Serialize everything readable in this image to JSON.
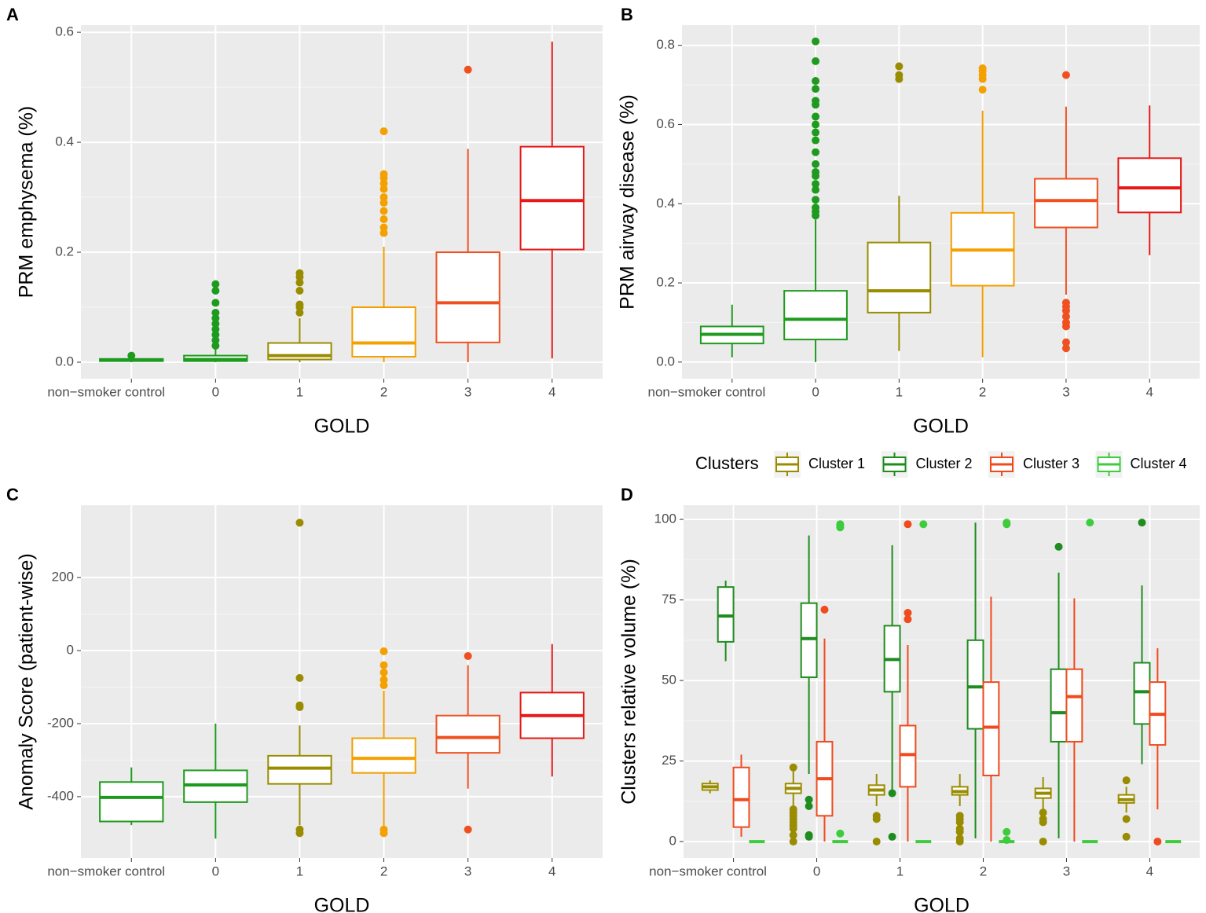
{
  "chart_data": [
    {
      "type": "box",
      "label": "A",
      "xlabel": "GOLD",
      "ylabel": "PRM emphysema (%)",
      "grid": true,
      "categories": [
        "non−smoker control",
        "0",
        "1",
        "2",
        "3",
        "4"
      ],
      "ylim": [
        -0.03,
        0.613
      ],
      "yticks": [
        {
          "value": 0,
          "label": "0.0"
        },
        0.2,
        0.4,
        0.6
      ],
      "series": [
        {
          "colors": [
            "#1e9a1e",
            "#1e9a1e",
            "#9a8c00",
            "#f4a000",
            "#f05020",
            "#e81818"
          ],
          "boxes": [
            {
              "min": 0,
              "q1": 0.002,
              "median": 0.004,
              "q3": 0.006,
              "max": 0.008,
              "outliers": [
                0.012
              ]
            },
            {
              "min": 0,
              "q1": 0.002,
              "median": 0.005,
              "q3": 0.012,
              "max": 0.026,
              "outliers": [
                0.03,
                0.04,
                0.05,
                0.06,
                0.07,
                0.08,
                0.09,
                0.108,
                0.13,
                0.142
              ]
            },
            {
              "min": 0,
              "q1": 0.005,
              "median": 0.012,
              "q3": 0.035,
              "max": 0.08,
              "outliers": [
                0.09,
                0.1,
                0.105,
                0.13,
                0.145,
                0.155,
                0.162
              ]
            },
            {
              "min": 0,
              "q1": 0.01,
              "median": 0.035,
              "q3": 0.1,
              "max": 0.21,
              "outliers": [
                0.235,
                0.245,
                0.26,
                0.275,
                0.29,
                0.3,
                0.315,
                0.325,
                0.335,
                0.342,
                0.42
              ]
            },
            {
              "min": 0,
              "q1": 0.036,
              "median": 0.108,
              "q3": 0.2,
              "max": 0.388,
              "outliers": [
                0.532
              ]
            },
            {
              "min": 0.007,
              "q1": 0.205,
              "median": 0.294,
              "q3": 0.392,
              "max": 0.583,
              "outliers": []
            }
          ]
        }
      ]
    },
    {
      "type": "box",
      "label": "B",
      "xlabel": "GOLD",
      "ylabel": "PRM airway disease (%)",
      "grid": true,
      "categories": [
        "non−smoker control",
        "0",
        "1",
        "2",
        "3",
        "4"
      ],
      "ylim": [
        -0.042,
        0.851
      ],
      "yticks": [
        {
          "value": 0,
          "label": "0.0"
        },
        0.2,
        0.4,
        0.6,
        0.8
      ],
      "series": [
        {
          "colors": [
            "#1e9a1e",
            "#1e9a1e",
            "#9a8c00",
            "#f4a000",
            "#f05020",
            "#e81818"
          ],
          "boxes": [
            {
              "min": 0.012,
              "q1": 0.047,
              "median": 0.07,
              "q3": 0.09,
              "max": 0.145,
              "outliers": []
            },
            {
              "min": 0,
              "q1": 0.057,
              "median": 0.108,
              "q3": 0.18,
              "max": 0.36,
              "outliers": [
                0.37,
                0.38,
                0.39,
                0.41,
                0.435,
                0.45,
                0.47,
                0.48,
                0.5,
                0.53,
                0.56,
                0.58,
                0.6,
                0.62,
                0.65,
                0.66,
                0.69,
                0.71,
                0.76,
                0.81
              ]
            },
            {
              "min": 0.028,
              "q1": 0.125,
              "median": 0.18,
              "q3": 0.302,
              "max": 0.42,
              "outliers": [
                0.715,
                0.725,
                0.747
              ]
            },
            {
              "min": 0.012,
              "q1": 0.193,
              "median": 0.283,
              "q3": 0.377,
              "max": 0.635,
              "outliers": [
                0.688,
                0.715,
                0.725,
                0.735,
                0.742
              ]
            },
            {
              "min": 0.17,
              "q1": 0.34,
              "median": 0.408,
              "q3": 0.463,
              "max": 0.645,
              "outliers": [
                0.035,
                0.05,
                0.09,
                0.1,
                0.115,
                0.13,
                0.14,
                0.15,
                0.725
              ]
            },
            {
              "min": 0.27,
              "q1": 0.378,
              "median": 0.44,
              "q3": 0.515,
              "max": 0.648,
              "outliers": []
            }
          ]
        }
      ]
    },
    {
      "type": "box",
      "label": "C",
      "xlabel": "GOLD",
      "ylabel": "Anomaly Score (patient-wise)",
      "grid": true,
      "categories": [
        "non−smoker control",
        "0",
        "1",
        "2",
        "3",
        "4"
      ],
      "ylim": [
        -568,
        398
      ],
      "yticks": [
        -400,
        -200,
        0,
        200
      ],
      "series": [
        {
          "colors": [
            "#1e9a1e",
            "#1e9a1e",
            "#9a8c00",
            "#f4a000",
            "#f05020",
            "#e81818"
          ],
          "boxes": [
            {
              "min": -478,
              "q1": -468,
              "median": -402,
              "q3": -360,
              "max": -320,
              "outliers": []
            },
            {
              "min": -515,
              "q1": -415,
              "median": -368,
              "q3": -328,
              "max": -200,
              "outliers": []
            },
            {
              "min": -478,
              "q1": -365,
              "median": -322,
              "q3": -288,
              "max": -205,
              "outliers": [
                -500,
                -490,
                -155,
                -150,
                -75,
                350
              ]
            },
            {
              "min": -480,
              "q1": -335,
              "median": -295,
              "q3": -240,
              "max": -110,
              "outliers": [
                -500,
                -490,
                -95,
                -80,
                -60,
                -40,
                -2
              ]
            },
            {
              "min": -378,
              "q1": -280,
              "median": -238,
              "q3": -178,
              "max": -40,
              "outliers": [
                -490,
                -15
              ]
            },
            {
              "min": -345,
              "q1": -240,
              "median": -178,
              "q3": -115,
              "max": 18,
              "outliers": []
            }
          ]
        }
      ]
    },
    {
      "type": "box",
      "label": "D",
      "xlabel": "GOLD",
      "ylabel": "Clusters relative volume (%)",
      "grid": true,
      "legend_title": "Clusters",
      "categories": [
        "non−smoker control",
        "0",
        "1",
        "2",
        "3",
        "4"
      ],
      "ylim": [
        -5.1,
        104.4
      ],
      "yticks": [
        0,
        25,
        50,
        75,
        100
      ],
      "series": [
        {
          "name": "Cluster 1",
          "color": "#9a8c00",
          "boxes": [
            {
              "min": 15,
              "q1": 16,
              "median": 17,
              "q3": 18,
              "max": 19,
              "outliers": []
            },
            {
              "min": 11,
              "q1": 15,
              "median": 16.5,
              "q3": 18,
              "max": 22,
              "outliers": [
                0,
                2,
                4,
                5,
                6,
                7,
                8,
                9,
                10,
                23
              ]
            },
            {
              "min": 11,
              "q1": 14.5,
              "median": 16,
              "q3": 17.5,
              "max": 21,
              "outliers": [
                0,
                7,
                8
              ]
            },
            {
              "min": 11,
              "q1": 14.5,
              "median": 15.5,
              "q3": 17,
              "max": 21,
              "outliers": [
                0,
                1,
                3,
                4,
                6,
                7,
                8
              ]
            },
            {
              "min": 10,
              "q1": 13.5,
              "median": 15,
              "q3": 16.5,
              "max": 20,
              "outliers": [
                0,
                6,
                7,
                9
              ]
            },
            {
              "min": 9,
              "q1": 12,
              "median": 13,
              "q3": 14.5,
              "max": 17,
              "outliers": [
                1.5,
                7,
                19
              ]
            }
          ]
        },
        {
          "name": "Cluster 2",
          "color": "#1e8c1e",
          "boxes": [
            {
              "min": 56,
              "q1": 62,
              "median": 70,
              "q3": 79,
              "max": 81,
              "outliers": []
            },
            {
              "min": 21,
              "q1": 51,
              "median": 63,
              "q3": 74,
              "max": 95,
              "outliers": [
                1.5,
                2,
                11,
                13
              ]
            },
            {
              "min": 16,
              "q1": 46.5,
              "median": 56.5,
              "q3": 67,
              "max": 92,
              "outliers": [
                1.5,
                15
              ]
            },
            {
              "min": 1,
              "q1": 35,
              "median": 48,
              "q3": 62.5,
              "max": 99,
              "outliers": []
            },
            {
              "min": 1,
              "q1": 31,
              "median": 40,
              "q3": 53.5,
              "max": 83.5,
              "outliers": [
                91.5
              ]
            },
            {
              "min": 24,
              "q1": 36.5,
              "median": 46.5,
              "q3": 55.5,
              "max": 79.5,
              "outliers": [
                99
              ]
            }
          ]
        },
        {
          "name": "Cluster 3",
          "color": "#f04a1e",
          "boxes": [
            {
              "min": 1.5,
              "q1": 4.5,
              "median": 13,
              "q3": 23,
              "max": 27,
              "outliers": []
            },
            {
              "min": 0,
              "q1": 8,
              "median": 19.5,
              "q3": 31,
              "max": 63,
              "outliers": [
                72
              ]
            },
            {
              "min": 0,
              "q1": 17,
              "median": 27,
              "q3": 36,
              "max": 61,
              "outliers": [
                69,
                71,
                98.5
              ]
            },
            {
              "min": 0,
              "q1": 20.5,
              "median": 35.5,
              "q3": 49.5,
              "max": 76,
              "outliers": []
            },
            {
              "min": 0,
              "q1": 31,
              "median": 45,
              "q3": 53.5,
              "max": 75.5,
              "outliers": []
            },
            {
              "min": 10,
              "q1": 30,
              "median": 39.5,
              "q3": 49.5,
              "max": 60,
              "outliers": [
                0
              ]
            }
          ]
        },
        {
          "name": "Cluster 4",
          "color": "#3ccc3c",
          "boxes": [
            {
              "min": 0,
              "q1": 0,
              "median": 0,
              "q3": 0,
              "max": 0,
              "outliers": []
            },
            {
              "min": 0,
              "q1": 0,
              "median": 0,
              "q3": 0,
              "max": 0,
              "outliers": [
                2.5,
                97.5,
                98,
                98.5
              ]
            },
            {
              "min": 0,
              "q1": 0,
              "median": 0,
              "q3": 0,
              "max": 0,
              "outliers": [
                98.5
              ]
            },
            {
              "min": 0,
              "q1": 0,
              "median": 0,
              "q3": 0,
              "max": 0,
              "outliers": [
                0.5,
                3,
                98.5,
                99
              ]
            },
            {
              "min": 0,
              "q1": 0,
              "median": 0,
              "q3": 0,
              "max": 0,
              "outliers": [
                99
              ]
            },
            {
              "min": 0,
              "q1": 0,
              "median": 0,
              "q3": 0,
              "max": 0,
              "outliers": []
            }
          ]
        }
      ]
    }
  ]
}
